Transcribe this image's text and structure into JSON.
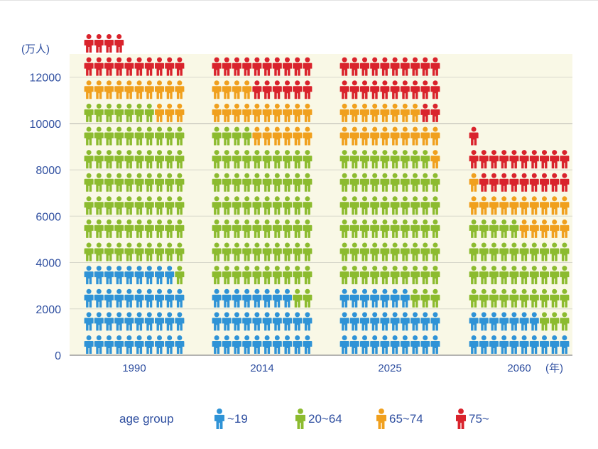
{
  "chart_data": {
    "type": "pictograph-stacked-bar",
    "y_unit_label": "(万人)",
    "x_unit_label": "(年)",
    "ylim": [
      0,
      13000
    ],
    "yticks": [
      0,
      2000,
      4000,
      6000,
      8000,
      10000,
      12000
    ],
    "icon_value": 1000,
    "categories": [
      "1990",
      "2014",
      "2025",
      "2060"
    ],
    "series": [
      {
        "name": "~19",
        "color": "#2f93d6",
        "values": [
          3900,
          2800,
          2700,
          1650
        ]
      },
      {
        "name": "20~64",
        "color": "#8cbb2f",
        "values": [
          6800,
          6600,
          6200,
          3800
        ]
      },
      {
        "name": "65~74",
        "color": "#f0a01e",
        "values": [
          1250,
          2000,
          1850,
          1550
        ]
      },
      {
        "name": "75~",
        "color": "#d9232c",
        "values": [
          1350,
          1600,
          2200,
          1950
        ]
      }
    ],
    "grid": true,
    "legend_position": "bottom"
  },
  "legend": {
    "title": "age group",
    "items": [
      {
        "label": "~19",
        "color": "#2f93d6"
      },
      {
        "label": "20~64",
        "color": "#8cbb2f"
      },
      {
        "label": "65~74",
        "color": "#f0a01e"
      },
      {
        "label": "75~",
        "color": "#d9232c"
      }
    ]
  }
}
